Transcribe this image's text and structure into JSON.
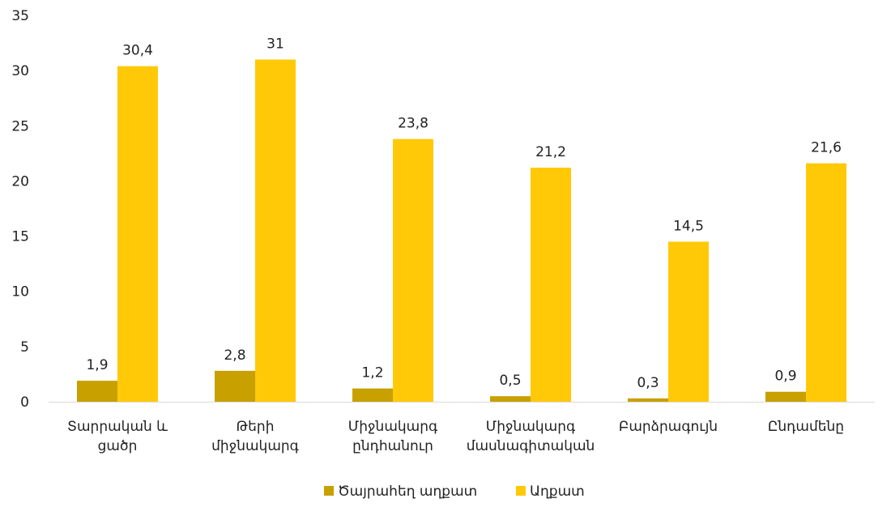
{
  "chart_data": {
    "type": "bar",
    "categories": [
      [
        "Տարրական և",
        "ցածր"
      ],
      [
        "Թերի",
        "միջնակարգ"
      ],
      [
        "Միջնակարգ",
        "ընդհանուր"
      ],
      [
        "Միջնակարգ",
        "մասնագիտական"
      ],
      [
        "Բարձրագույն"
      ],
      [
        "Ընդամենը"
      ]
    ],
    "series": [
      {
        "name": "Ծայրահեղ աղքատ",
        "color": "#c8a000",
        "values": [
          1.9,
          2.8,
          1.2,
          0.5,
          0.3,
          0.9
        ],
        "labels": [
          "1,9",
          "2,8",
          "1,2",
          "0,5",
          "0,3",
          "0,9"
        ]
      },
      {
        "name": "Աղքատ",
        "color": "#ffc907",
        "values": [
          30.4,
          31,
          23.8,
          21.2,
          14.5,
          21.6
        ],
        "labels": [
          "30,4",
          "31",
          "23,8",
          "21,2",
          "14,5",
          "21,6"
        ]
      }
    ],
    "ylim": [
      0,
      35
    ],
    "yticks": [
      0,
      5,
      10,
      15,
      20,
      25,
      30,
      35
    ],
    "grid": false,
    "legend": "bottom"
  }
}
